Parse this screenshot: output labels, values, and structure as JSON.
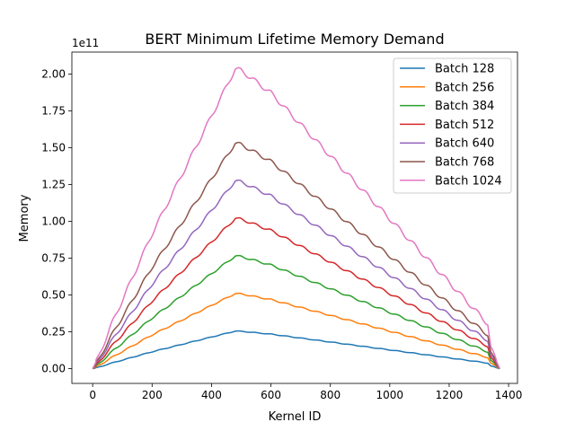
{
  "chart_data": {
    "type": "line",
    "title": "BERT Minimum Lifetime Memory Demand",
    "xlabel": "Kernel ID",
    "ylabel": "Memory",
    "y_offset_text": "1e11",
    "xlim": [
      -70,
      1430
    ],
    "ylim": [
      -0.1,
      2.15
    ],
    "xticks": [
      0,
      200,
      400,
      600,
      800,
      1000,
      1200,
      1400
    ],
    "xtick_labels": [
      "0",
      "200",
      "400",
      "600",
      "800",
      "1000",
      "1200",
      "1400"
    ],
    "yticks": [
      0.0,
      0.25,
      0.5,
      0.75,
      1.0,
      1.25,
      1.5,
      1.75,
      2.0
    ],
    "ytick_labels": [
      "0.00",
      "0.25",
      "0.50",
      "0.75",
      "1.00",
      "1.25",
      "1.50",
      "1.75",
      "2.00"
    ],
    "legend_position": "top-right",
    "grid": false,
    "shape_points": {
      "x": [
        0,
        20,
        60,
        200,
        480,
        500,
        600,
        1000,
        1330,
        1340,
        1370
      ],
      "y_frac": [
        0.0,
        0.04,
        0.14,
        0.45,
        1.0,
        0.995,
        0.92,
        0.5,
        0.15,
        0.07,
        0.0
      ]
    },
    "series": [
      {
        "name": "Batch 128",
        "peak": 0.255,
        "color": "#1f77b4"
      },
      {
        "name": "Batch 256",
        "peak": 0.51,
        "color": "#ff7f0e"
      },
      {
        "name": "Batch 384",
        "peak": 0.765,
        "color": "#2ca02c"
      },
      {
        "name": "Batch 512",
        "peak": 1.02,
        "color": "#d62728"
      },
      {
        "name": "Batch 640",
        "peak": 1.275,
        "color": "#9467bd"
      },
      {
        "name": "Batch 768",
        "peak": 1.53,
        "color": "#8c564b"
      },
      {
        "name": "Batch 1024",
        "peak": 2.035,
        "color": "#e377c2"
      }
    ]
  }
}
